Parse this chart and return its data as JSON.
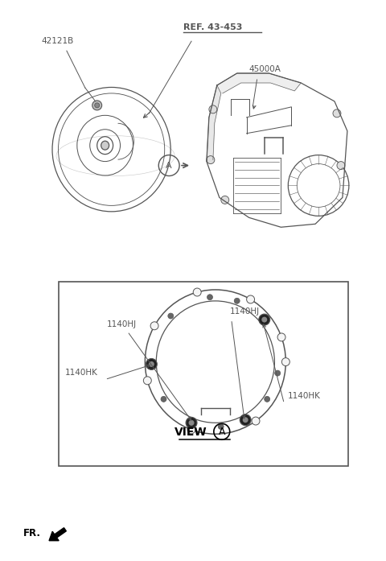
{
  "bg_color": "#ffffff",
  "fig_width": 4.8,
  "fig_height": 6.97,
  "dpi": 100,
  "labels": {
    "part_42121B": "42121B",
    "ref_43_453": "REF. 43-453",
    "part_45000A": "45000A",
    "part_1140HJ_left": "1140HJ",
    "part_1140HJ_right": "1140HJ",
    "part_1140HK_left": "1140HK",
    "part_1140HK_right": "1140HK",
    "view_label": "VIEW",
    "view_a_letter": "A",
    "fr_label": "FR."
  },
  "colors": {
    "line": "#555555",
    "text": "#555555",
    "box_edge": "#555555",
    "black": "#000000"
  },
  "font_sizes": {
    "part_label": 7.5,
    "ref_label": 8.0,
    "view_label": 10,
    "fr_label": 8.5,
    "circle_a": 8
  }
}
